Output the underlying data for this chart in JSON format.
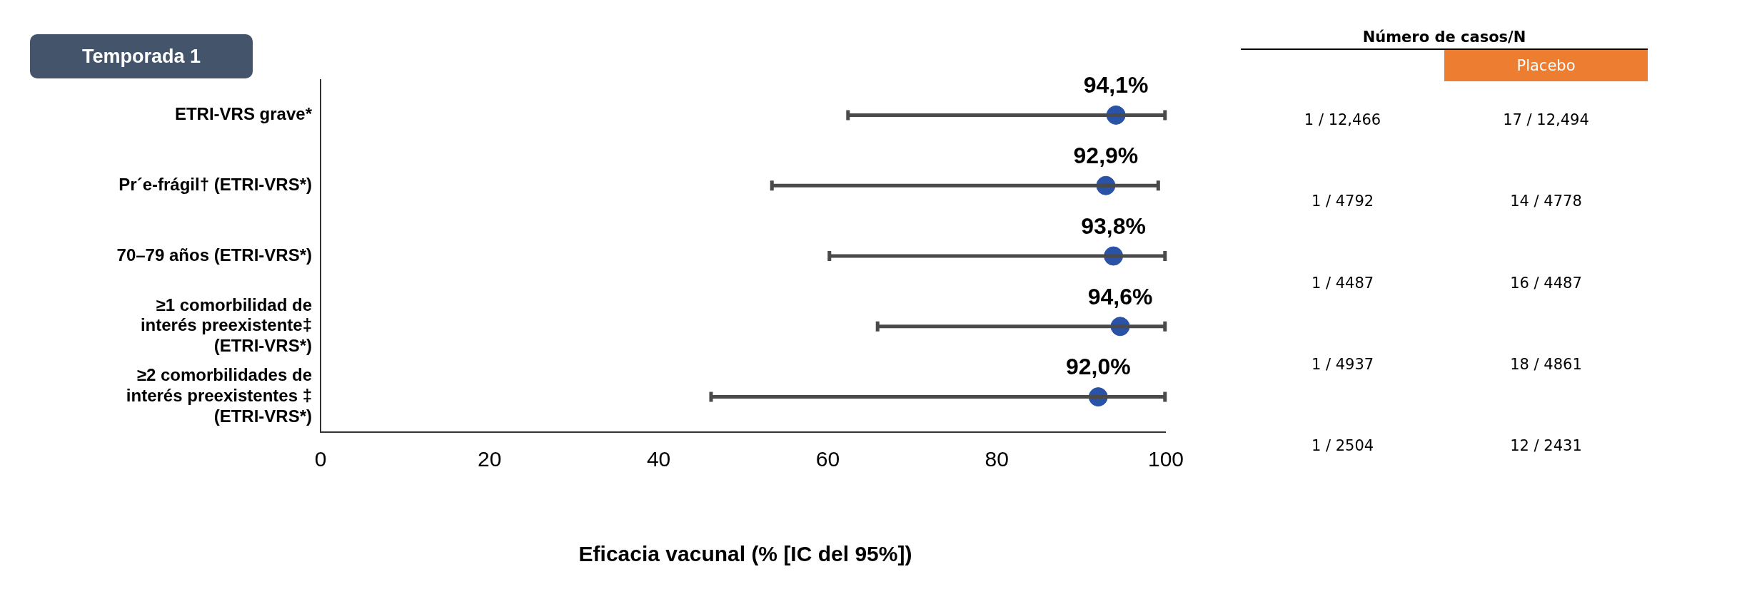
{
  "chart_data": {
    "type": "scatter",
    "orientation": "horizontal",
    "title": "Temporada 1",
    "xlabel": "Eficacia vacunal (% [IC del 95%])",
    "categories": [
      "ETRI-VRS grave*",
      "Pr´e-frágil† (ETRI-VRS*)",
      "70–79 años (ETRI-VRS*)",
      "≥1 comorbilidad de interés preexistente‡ (ETRI-VRS*)",
      "≥2 comorbilidades de interés preexistentes ‡ (ETRI-VRS*)"
    ],
    "values": [
      94.1,
      92.9,
      93.8,
      94.6,
      92.0
    ],
    "errors": [
      [
        62.4,
        99.9
      ],
      [
        53.4,
        99.1
      ],
      [
        60.2,
        99.9
      ],
      [
        65.9,
        99.9
      ],
      [
        46.2,
        99.9
      ]
    ],
    "value_labels": [
      "94,1%",
      "92,9%",
      "93,8%",
      "94,6%",
      "92,0%"
    ],
    "color": "#2a52a6",
    "xlim": [
      0,
      100
    ],
    "xticks": [
      0,
      20,
      40,
      60,
      80,
      100
    ],
    "annotations": [
      "Número de casos/N",
      "Placebo",
      "1 / 12,466",
      "17 / 12,494",
      "1 / 4792",
      "14 / 4778",
      "1 / 4487",
      "16 / 4487",
      "1 / 4937",
      "18 / 4861",
      "1 / 2504",
      "12 / 2431"
    ]
  }
}
